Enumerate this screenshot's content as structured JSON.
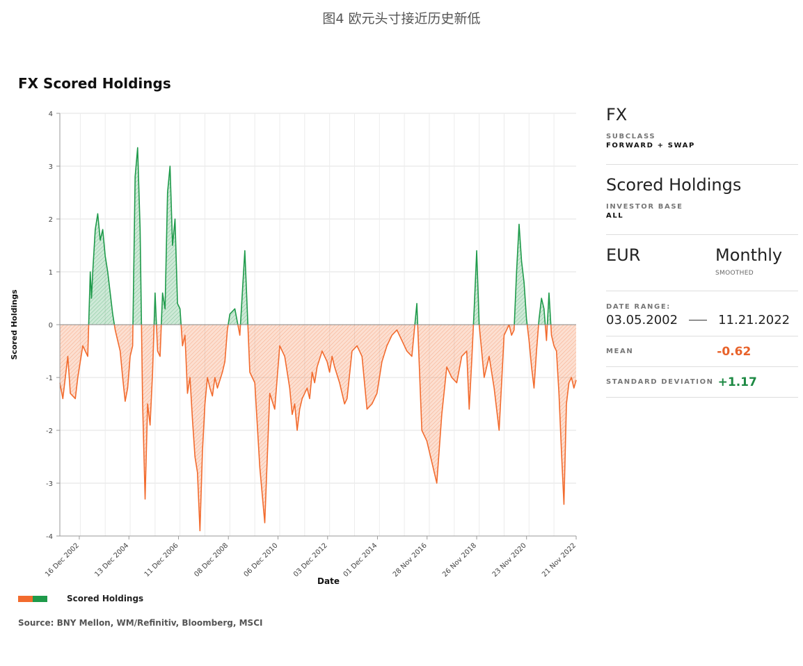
{
  "page_caption": "图4 欧元头寸接近历史新低",
  "chart_title": "FX Scored Holdings",
  "legend_label": "Scored Holdings",
  "source": "Source: BNY Mellon, WM/Refinitiv, Bloomberg, MSCI",
  "panel": {
    "asset": "FX",
    "subclass_label": "SUBCLASS",
    "subclass_value": "FORWARD + SWAP",
    "metric": "Scored Holdings",
    "investor_base_label": "INVESTOR BASE",
    "investor_base_value": "ALL",
    "currency": "EUR",
    "frequency": "Monthly",
    "frequency_note": "SMOOTHED",
    "date_range_label": "DATE RANGE:",
    "date_start": "03.05.2002",
    "date_end": "11.21.2022",
    "mean_label": "MEAN",
    "mean_value": "-0.62",
    "sd_label": "STANDARD DEVIATION",
    "sd_value": "+1.17",
    "colors": {
      "negative": "#e8622a",
      "positive": "#1e8a44"
    }
  },
  "chart_data": {
    "type": "area",
    "xlabel": "Date",
    "ylabel": "Scored Holdings",
    "ylim": [
      -4,
      4
    ],
    "yticks": [
      "4",
      "3",
      "2",
      "1",
      "0",
      "-1",
      "-2",
      "-3",
      "-4"
    ],
    "xlim": [
      2002.18,
      2022.89
    ],
    "xticks": [
      {
        "label": "16 Dec 2002",
        "x": 2002.96
      },
      {
        "label": "13 Dec 2004",
        "x": 2004.95
      },
      {
        "label": "11 Dec 2006",
        "x": 2006.94
      },
      {
        "label": "08 Dec 2008",
        "x": 2008.94
      },
      {
        "label": "06 Dec 2010",
        "x": 2010.93
      },
      {
        "label": "03 Dec 2012",
        "x": 2012.92
      },
      {
        "label": "01 Dec 2014",
        "x": 2014.92
      },
      {
        "label": "28 Nov 2016",
        "x": 2016.91
      },
      {
        "label": "26 Nov 2018",
        "x": 2018.9
      },
      {
        "label": "23 Nov 2020",
        "x": 2020.9
      },
      {
        "label": "21 Nov 2022",
        "x": 2022.89
      }
    ],
    "grid": true,
    "colors": {
      "positive": "#1e9a4a",
      "negative": "#f26b2e"
    },
    "x": [
      2002.18,
      2002.3,
      2002.4,
      2002.5,
      2002.6,
      2002.8,
      2002.9,
      2003.0,
      2003.1,
      2003.3,
      2003.4,
      2003.45,
      2003.5,
      2003.6,
      2003.7,
      2003.8,
      2003.9,
      2004.0,
      2004.1,
      2004.2,
      2004.3,
      2004.4,
      2004.5,
      2004.6,
      2004.7,
      2004.8,
      2004.9,
      2005.0,
      2005.1,
      2005.2,
      2005.3,
      2005.4,
      2005.5,
      2005.6,
      2005.7,
      2005.8,
      2005.9,
      2006.0,
      2006.1,
      2006.2,
      2006.3,
      2006.4,
      2006.5,
      2006.6,
      2006.7,
      2006.8,
      2006.9,
      2007.0,
      2007.1,
      2007.2,
      2007.3,
      2007.4,
      2007.5,
      2007.6,
      2007.7,
      2007.8,
      2007.9,
      2008.0,
      2008.1,
      2008.2,
      2008.3,
      2008.4,
      2008.5,
      2008.7,
      2008.8,
      2008.9,
      2009.0,
      2009.2,
      2009.4,
      2009.6,
      2009.8,
      2010.0,
      2010.2,
      2010.4,
      2010.6,
      2010.8,
      2011.0,
      2011.2,
      2011.4,
      2011.5,
      2011.6,
      2011.7,
      2011.8,
      2011.9,
      2012.0,
      2012.1,
      2012.2,
      2012.3,
      2012.4,
      2012.5,
      2012.7,
      2012.9,
      2013.0,
      2013.1,
      2013.2,
      2013.4,
      2013.6,
      2013.7,
      2013.9,
      2014.1,
      2014.3,
      2014.5,
      2014.7,
      2014.9,
      2015.1,
      2015.3,
      2015.5,
      2015.7,
      2015.9,
      2016.1,
      2016.3,
      2016.5,
      2016.7,
      2016.9,
      2017.1,
      2017.3,
      2017.5,
      2017.7,
      2017.9,
      2018.1,
      2018.3,
      2018.5,
      2018.6,
      2018.7,
      2018.8,
      2018.9,
      2019.0,
      2019.2,
      2019.4,
      2019.6,
      2019.8,
      2020.0,
      2020.2,
      2020.3,
      2020.4,
      2020.5,
      2020.6,
      2020.7,
      2020.8,
      2020.9,
      2021.0,
      2021.1,
      2021.2,
      2021.3,
      2021.4,
      2021.5,
      2021.6,
      2021.7,
      2021.8,
      2021.9,
      2022.0,
      2022.1,
      2022.2,
      2022.3,
      2022.4,
      2022.5,
      2022.6,
      2022.7,
      2022.8,
      2022.89
    ],
    "y": [
      -1.1,
      -1.4,
      -1.0,
      -0.6,
      -1.3,
      -1.4,
      -1.0,
      -0.7,
      -0.4,
      -0.6,
      1.0,
      0.5,
      1.0,
      1.8,
      2.1,
      1.6,
      1.8,
      1.3,
      1.0,
      0.6,
      0.2,
      -0.1,
      -0.3,
      -0.5,
      -1.0,
      -1.45,
      -1.2,
      -0.6,
      -0.4,
      2.8,
      3.35,
      1.8,
      -1.5,
      -3.3,
      -1.5,
      -1.9,
      -0.9,
      0.6,
      -0.5,
      -0.6,
      0.6,
      0.3,
      2.5,
      3.0,
      1.5,
      2.0,
      0.4,
      0.3,
      -0.4,
      -0.2,
      -1.3,
      -1.0,
      -1.8,
      -2.5,
      -2.8,
      -3.9,
      -2.4,
      -1.5,
      -1.0,
      -1.2,
      -1.35,
      -1.0,
      -1.2,
      -0.9,
      -0.7,
      -0.1,
      0.2,
      0.3,
      -0.2,
      1.4,
      -0.9,
      -1.1,
      -2.7,
      -3.75,
      -1.3,
      -1.6,
      -0.4,
      -0.6,
      -1.2,
      -1.7,
      -1.5,
      -2.0,
      -1.6,
      -1.4,
      -1.3,
      -1.2,
      -1.4,
      -0.9,
      -1.1,
      -0.8,
      -0.5,
      -0.7,
      -0.9,
      -0.6,
      -0.8,
      -1.1,
      -1.5,
      -1.4,
      -0.5,
      -0.4,
      -0.6,
      -1.6,
      -1.5,
      -1.3,
      -0.7,
      -0.4,
      -0.2,
      -0.1,
      -0.3,
      -0.5,
      -0.6,
      0.4,
      -2.0,
      -2.2,
      -2.6,
      -3.0,
      -1.7,
      -0.8,
      -1.0,
      -1.1,
      -0.6,
      -0.5,
      -1.6,
      -0.7,
      0.3,
      1.4,
      0.0,
      -1.0,
      -0.6,
      -1.2,
      -2.0,
      -0.2,
      0.0,
      -0.2,
      -0.1,
      1.0,
      1.9,
      1.2,
      0.8,
      0.1,
      -0.3,
      -0.8,
      -1.2,
      -0.5,
      0.1,
      0.5,
      0.3,
      -0.3,
      0.6,
      -0.2,
      -0.4,
      -0.5,
      -1.3,
      -2.4,
      -3.4,
      -1.5,
      -1.1,
      -1.0,
      -1.2,
      -1.05
    ]
  }
}
